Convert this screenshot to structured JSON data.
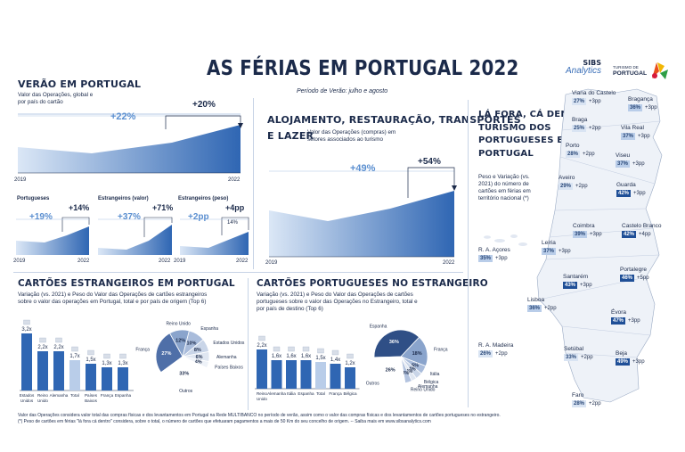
{
  "header": {
    "title": "AS FÉRIAS EM PORTUGAL 2022",
    "period": "Período de Verão: julho e agosto",
    "brand1_top": "SIBS",
    "brand1_bottom": "Analytics",
    "brand2_top": "TURISMO DE",
    "brand2_bottom": "PORTUGAL"
  },
  "summer": {
    "title": "VERÃO EM PORTUGAL",
    "desc1": "Valor das Operações, global e",
    "desc2": "por país do cartão",
    "pct_long": "+22%",
    "pct_short": "+20%",
    "x_start": "2019",
    "x_end": "2022",
    "mini": [
      {
        "title": "Portugueses",
        "pct_long": "+19%",
        "pct_short": "+14%",
        "x_start": "2019",
        "x_end": "2022"
      },
      {
        "title": "Estrangeiros (valor)",
        "pct_long": "+37%",
        "pct_short": "+71%",
        "x_start": "",
        "x_end": "2022"
      },
      {
        "title": "Estrangeiros (peso)",
        "pct_long": "+2pp",
        "pct_short": "+4pp",
        "x_start": "2019",
        "x_end": "2022",
        "val_a": "10%",
        "val_b": "14%"
      }
    ]
  },
  "lodging": {
    "title1": "ALOJAMENTO, RESTAURAÇÃO, TRANSPORTES",
    "title2": "E LAZER",
    "desc1": "Valor das Operações (compras) em",
    "desc2": "setores associados ao turismo",
    "pct_long": "+49%",
    "pct_short": "+54%",
    "x_start": "2019",
    "x_end": "2022"
  },
  "abroad": {
    "title1": "LÁ FORA, CÁ DENTRO",
    "title2": "TURISMO DOS",
    "title3": "PORTUGUESES EM",
    "title4": "PORTUGAL",
    "desc1": "Peso e Variação (vs.",
    "desc2": "2021) do número de",
    "desc3": "cartões em férias em",
    "desc4": "território nacional (*)"
  },
  "districts": [
    {
      "name": "Viana do Castelo",
      "pct": "27%",
      "delta": "+3pp"
    },
    {
      "name": "Bragança",
      "pct": "36%",
      "delta": "+3pp"
    },
    {
      "name": "Braga",
      "pct": "25%",
      "delta": "+2pp"
    },
    {
      "name": "Vila Real",
      "pct": "37%",
      "delta": "+3pp"
    },
    {
      "name": "Porto",
      "pct": "28%",
      "delta": "+2pp"
    },
    {
      "name": "Viseu",
      "pct": "37%",
      "delta": "+3pp"
    },
    {
      "name": "Aveiro",
      "pct": "29%",
      "delta": "+2pp"
    },
    {
      "name": "Guarda",
      "pct": "42%",
      "delta": "+3pp"
    },
    {
      "name": "Coimbra",
      "pct": "39%",
      "delta": "+3pp"
    },
    {
      "name": "Castelo Branco",
      "pct": "42%",
      "delta": "+4pp"
    },
    {
      "name": "Leiria",
      "pct": "37%",
      "delta": "+3pp"
    },
    {
      "name": "Portalegre",
      "pct": "46%",
      "delta": "+5pp"
    },
    {
      "name": "Santarém",
      "pct": "43%",
      "delta": "+3pp"
    },
    {
      "name": "Lisboa",
      "pct": "36%",
      "delta": "+2pp"
    },
    {
      "name": "Évora",
      "pct": "47%",
      "delta": "+3pp"
    },
    {
      "name": "Setúbal",
      "pct": "33%",
      "delta": "+2pp"
    },
    {
      "name": "Beja",
      "pct": "49%",
      "delta": "+3pp"
    },
    {
      "name": "Faro",
      "pct": "28%",
      "delta": "+2pp"
    },
    {
      "name": "R. A. Açores",
      "pct": "35%",
      "delta": "+3pp"
    },
    {
      "name": "R. A. Madeira",
      "pct": "26%",
      "delta": "+2pp"
    }
  ],
  "foreign_cards": {
    "title": "CARTÕES ESTRANGEIROS EM PORTUGAL",
    "desc1": "Variação (vs. 2021) e Peso do Valor das Operações de cartões estrangeiros",
    "desc2": "sobre o valor das operações em Portugal, total e por país de origem (Top 6)",
    "bars": [
      {
        "label": "Estados Unidos",
        "value": 3.2,
        "text": "3,2x"
      },
      {
        "label": "Reino Unido",
        "value": 2.2,
        "text": "2,2x"
      },
      {
        "label": "Alemanha",
        "value": 2.2,
        "text": "2,2x"
      },
      {
        "label": "Total",
        "value": 1.7,
        "text": "1,7x"
      },
      {
        "label": "Países Baixos",
        "value": 1.5,
        "text": "1,5x"
      },
      {
        "label": "França",
        "value": 1.3,
        "text": "1,3x"
      },
      {
        "label": "Espanha",
        "value": 1.3,
        "text": "1,3x"
      }
    ],
    "pie": [
      {
        "label": "França",
        "value": 27,
        "text": "27%"
      },
      {
        "label": "Reino Unido",
        "value": 12,
        "text": "12%"
      },
      {
        "label": "Espanha",
        "value": 10,
        "text": "10%"
      },
      {
        "label": "Estados Unidos",
        "value": 8,
        "text": "8%"
      },
      {
        "label": "Alemanha",
        "value": 6,
        "text": "6%"
      },
      {
        "label": "Países Baixos",
        "value": 4,
        "text": "4%"
      },
      {
        "label": "Outros",
        "value": 33,
        "text": "33%"
      }
    ]
  },
  "pt_cards": {
    "title": "CARTÕES PORTUGUESES NO ESTRANGEIRO",
    "desc1": "Variação (vs. 2021) e Peso do Valor das Operações de cartões",
    "desc2": "portugueses sobre o valor das Operações no Estrangeiro, total e",
    "desc3": "por país de destino (Top 6)",
    "bars": [
      {
        "label": "Reino Unido",
        "value": 2.2,
        "text": "2,2x"
      },
      {
        "label": "Alemanha",
        "value": 1.6,
        "text": "1,6x"
      },
      {
        "label": "Itália",
        "value": 1.6,
        "text": "1,6x"
      },
      {
        "label": "Espanha",
        "value": 1.6,
        "text": "1,6x"
      },
      {
        "label": "Total",
        "value": 1.5,
        "text": "1,5x"
      },
      {
        "label": "França",
        "value": 1.4,
        "text": "1,4x"
      },
      {
        "label": "Bélgica",
        "value": 1.2,
        "text": "1,2x"
      }
    ],
    "pie": [
      {
        "label": "Espanha",
        "value": 36,
        "text": "36%"
      },
      {
        "label": "França",
        "value": 18,
        "text": "18%"
      },
      {
        "label": "Itália",
        "value": 5,
        "text": "5%"
      },
      {
        "label": "Bélgica",
        "value": 4,
        "text": "4%"
      },
      {
        "label": "Alemanha",
        "value": 3,
        "text": "3%"
      },
      {
        "label": "Reino Unido",
        "value": 4,
        "text": "4%"
      },
      {
        "label": "Outros",
        "value": 26,
        "text": "26%"
      }
    ]
  },
  "footnotes": {
    "line1": "Valor das Operações considera valor total das compras físicas e dos levantamentos em Portugal na Rede MULTIBANCO no período de verão, assim como o valor das compras físicas e dos levantamentos de cartões portugueses no estrangeiro.",
    "line2": "(*) Peso de cartões em férias \"lá fora cá dentro\" considera, sobre o total, o número de cartões que efetuaram pagamentos a mais de 50 Km do seu concelho de origem.  -- Saiba mais em www.sibsanalytics.com"
  }
}
